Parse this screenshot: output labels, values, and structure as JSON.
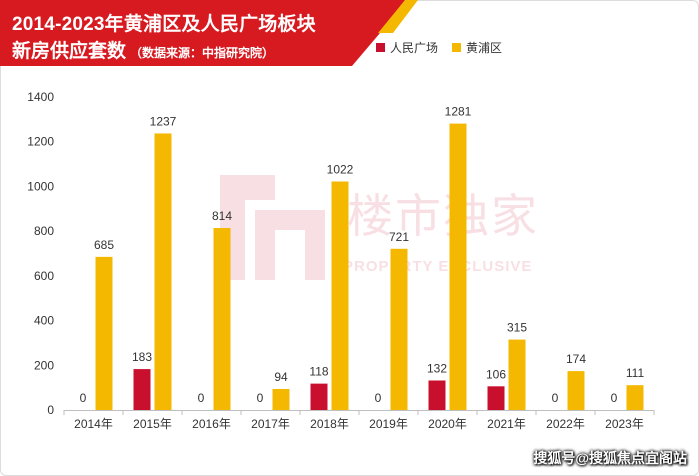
{
  "title": {
    "line1": "2014-2023年黄浦区及人民广场板块",
    "line2": "新房供应套数",
    "source": "（数据来源：中指研究院）"
  },
  "watermark": {
    "cn": "楼市独家",
    "en": "PROPERTY EXCLUSIVE"
  },
  "footer": "搜狐号@搜狐焦点宜阁站",
  "colors": {
    "banner": "#d71920",
    "banner_accent": "#f5b800",
    "series_a": "#c8102e",
    "series_b": "#f5b800"
  },
  "chart_data": {
    "type": "bar",
    "categories": [
      "2014年",
      "2015年",
      "2016年",
      "2017年",
      "2018年",
      "2019年",
      "2020年",
      "2021年",
      "2022年",
      "2023年"
    ],
    "series": [
      {
        "name": "人民广场",
        "values": [
          0,
          183,
          0,
          0,
          118,
          0,
          132,
          106,
          0,
          0
        ]
      },
      {
        "name": "黄浦区",
        "values": [
          685,
          1237,
          814,
          94,
          1022,
          721,
          1281,
          315,
          174,
          111
        ]
      }
    ],
    "yticks": [
      0,
      200,
      400,
      600,
      800,
      1000,
      1200,
      1400
    ],
    "ylim": [
      0,
      1400
    ],
    "legend_position": "top-right",
    "grid": false
  }
}
